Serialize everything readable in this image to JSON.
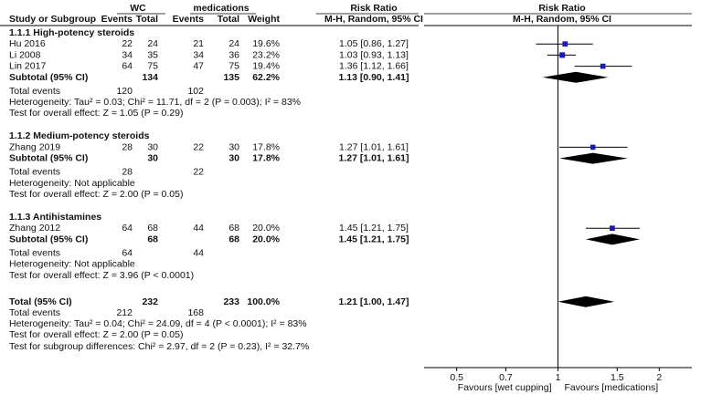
{
  "chart_data": {
    "type": "forest",
    "headers": {
      "group_wc": "WC",
      "group_med": "medications",
      "study": "Study or Subgroup",
      "events": "Events",
      "total": "Total",
      "events2": "Events",
      "total2": "Total",
      "weight": "Weight",
      "rr_title": "Risk Ratio",
      "rr_method": "M-H, Random, 95% CI",
      "plot_title": "Risk Ratio",
      "plot_method": "M-H, Random, 95% CI"
    },
    "subgroups": [
      {
        "title": "1.1.1 High-potency steroids",
        "studies": [
          {
            "name": "Hu 2016",
            "e1": "22",
            "n1": "24",
            "e2": "21",
            "n2": "24",
            "weight": "19.6%",
            "rr_text": "1.05 [0.86, 1.27]",
            "rr": 1.05,
            "lo": 0.86,
            "hi": 1.27
          },
          {
            "name": "Li 2008",
            "e1": "34",
            "n1": "35",
            "e2": "34",
            "n2": "36",
            "weight": "23.2%",
            "rr_text": "1.03 [0.93, 1.13]",
            "rr": 1.03,
            "lo": 0.93,
            "hi": 1.13
          },
          {
            "name": "Lin 2017",
            "e1": "64",
            "n1": "75",
            "e2": "47",
            "n2": "75",
            "weight": "19.4%",
            "rr_text": "1.36 [1.12, 1.66]",
            "rr": 1.36,
            "lo": 1.12,
            "hi": 1.66
          }
        ],
        "subtotal": {
          "label": "Subtotal (95% CI)",
          "n1": "134",
          "n2": "135",
          "weight": "62.2%",
          "rr_text": "1.13 [0.90, 1.41]",
          "rr": 1.13,
          "lo": 0.9,
          "hi": 1.41
        },
        "total_events": {
          "label": "Total events",
          "e1": "120",
          "e2": "102"
        },
        "heterogeneity": "Heterogeneity: Tau² = 0.03; Chi² = 11.71, df = 2 (P = 0.003); I² = 83%",
        "overall": "Test for overall effect: Z = 1.05 (P = 0.29)"
      },
      {
        "title": "1.1.2 Medium-potency steroids",
        "studies": [
          {
            "name": "Zhang 2019",
            "e1": "28",
            "n1": "30",
            "e2": "22",
            "n2": "30",
            "weight": "17.8%",
            "rr_text": "1.27 [1.01, 1.61]",
            "rr": 1.27,
            "lo": 1.01,
            "hi": 1.61
          }
        ],
        "subtotal": {
          "label": "Subtotal (95% CI)",
          "n1": "30",
          "n2": "30",
          "weight": "17.8%",
          "rr_text": "1.27 [1.01, 1.61]",
          "rr": 1.27,
          "lo": 1.01,
          "hi": 1.61
        },
        "total_events": {
          "label": "Total events",
          "e1": "28",
          "e2": "22"
        },
        "heterogeneity": "Heterogeneity: Not applicable",
        "overall": "Test for overall effect: Z = 2.00 (P = 0.05)"
      },
      {
        "title": "1.1.3 Antihistamines",
        "studies": [
          {
            "name": "Zhang 2012",
            "e1": "64",
            "n1": "68",
            "e2": "44",
            "n2": "68",
            "weight": "20.0%",
            "rr_text": "1.45 [1.21, 1.75]",
            "rr": 1.45,
            "lo": 1.21,
            "hi": 1.75
          }
        ],
        "subtotal": {
          "label": "Subtotal (95% CI)",
          "n1": "68",
          "n2": "68",
          "weight": "20.0%",
          "rr_text": "1.45 [1.21, 1.75]",
          "rr": 1.45,
          "lo": 1.21,
          "hi": 1.75
        },
        "total_events": {
          "label": "Total events",
          "e1": "64",
          "e2": "44"
        },
        "heterogeneity": "Heterogeneity: Not applicable",
        "overall": "Test for overall effect: Z = 3.96 (P < 0.0001)"
      }
    ],
    "total": {
      "label": "Total (95% CI)",
      "n1": "232",
      "n2": "233",
      "weight": "100.0%",
      "rr_text": "1.21 [1.00, 1.47]",
      "rr": 1.21,
      "lo": 1.0,
      "hi": 1.47
    },
    "total_events": {
      "label": "Total events",
      "e1": "212",
      "e2": "168"
    },
    "heterogeneity": "Heterogeneity: Tau² = 0.04; Chi² = 24.09, df = 4 (P < 0.0001); I² = 83%",
    "overall": "Test for overall effect: Z = 2.00 (P = 0.05)",
    "subgroup_diff": "Test for subgroup differences: Chi² = 2.97, df = 2 (P = 0.23), I² = 32.7%",
    "axis": {
      "scale": "log",
      "xlim": [
        0.4,
        2.5
      ],
      "ticks": [
        0.5,
        0.7,
        1,
        1.5,
        2
      ],
      "tick_labels": [
        "0.5",
        "0.7",
        "1",
        "1.5",
        "2"
      ],
      "favours_left": "Favours [wet cupping]",
      "favours_right": "Favours [medications]"
    },
    "colors": {
      "marker": "#1a1ab8",
      "diamond": "#000000",
      "text": "#111111"
    }
  }
}
